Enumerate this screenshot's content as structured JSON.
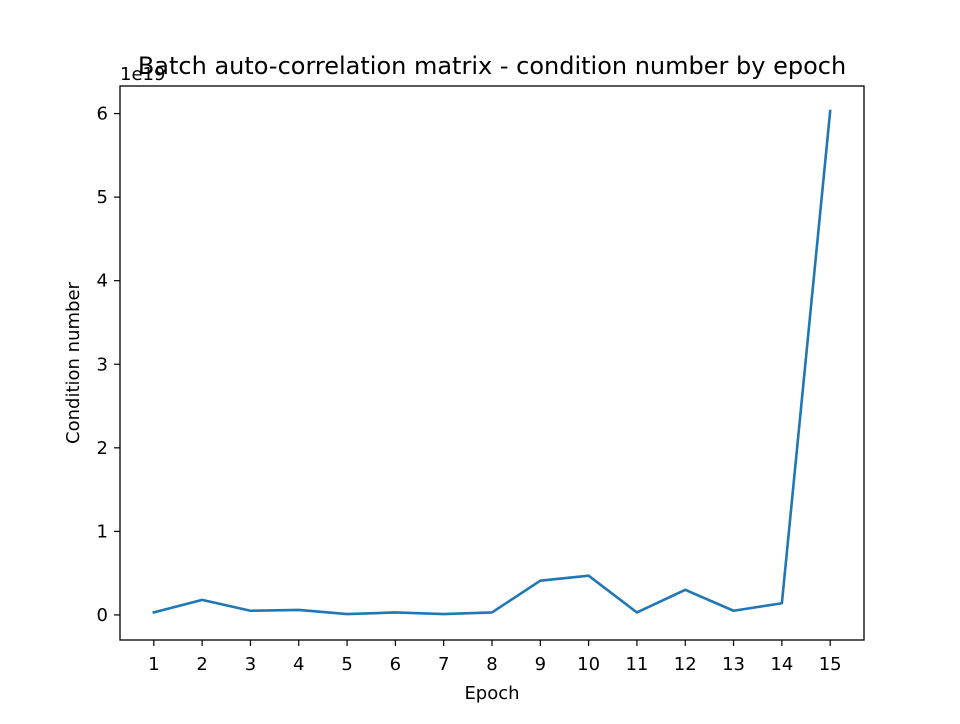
{
  "chart_data": {
    "type": "line",
    "title": "Batch auto-correlation matrix - condition number by epoch",
    "xlabel": "Epoch",
    "ylabel": "Condition number",
    "y_offset_label": "1e19",
    "y_scale_multiplier": 1e+19,
    "x": [
      1,
      2,
      3,
      4,
      5,
      6,
      7,
      8,
      9,
      10,
      11,
      12,
      13,
      14,
      15
    ],
    "x_ticks": [
      "1",
      "2",
      "3",
      "4",
      "5",
      "6",
      "7",
      "8",
      "9",
      "10",
      "11",
      "12",
      "13",
      "14",
      "15"
    ],
    "y_ticks": [
      "0",
      "1",
      "2",
      "3",
      "4",
      "5",
      "6"
    ],
    "ylim": [
      -0.3,
      6.33
    ],
    "xlim": [
      0.3,
      15.7
    ],
    "series": [
      {
        "name": "",
        "color": "#1f77b4",
        "values": [
          0.03,
          0.18,
          0.05,
          0.06,
          0.01,
          0.03,
          0.01,
          0.03,
          0.41,
          0.47,
          0.03,
          0.3,
          0.05,
          0.14,
          6.03
        ]
      }
    ],
    "grid": false,
    "legend": "none"
  }
}
